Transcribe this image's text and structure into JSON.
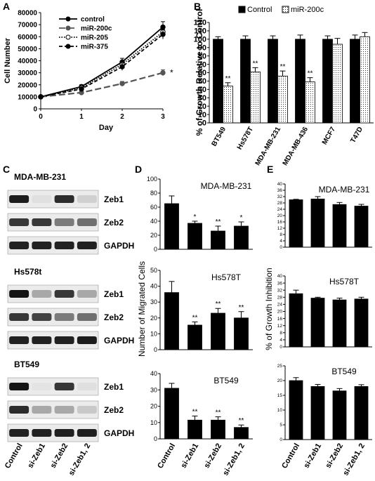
{
  "panels": [
    "A",
    "B",
    "C",
    "D",
    "E"
  ],
  "chart_data": [
    {
      "id": "A",
      "type": "line",
      "xlabel": "Day",
      "ylabel": "Cell Number",
      "x": [
        0,
        1,
        2,
        3
      ],
      "xlim": [
        0,
        3
      ],
      "ylim": [
        0,
        80000
      ],
      "yticks": [
        0,
        10000,
        20000,
        30000,
        40000,
        50000,
        60000,
        70000,
        80000
      ],
      "series": [
        {
          "name": "control",
          "values": [
            10000,
            18500,
            39000,
            68000
          ],
          "err": [
            0,
            1500,
            3000,
            4500
          ],
          "line": "solid",
          "marker": "filled"
        },
        {
          "name": "miR-200c",
          "values": [
            10000,
            13500,
            21000,
            30000
          ],
          "err": [
            0,
            1000,
            1800,
            2500
          ],
          "line": "longdash",
          "marker": "filled",
          "color": "#555555"
        },
        {
          "name": "miR-205",
          "values": [
            10000,
            17500,
            37000,
            64000
          ],
          "err": [
            0,
            1500,
            3000,
            4500
          ],
          "line": "dotted",
          "marker": "open"
        },
        {
          "name": "miR-375",
          "values": [
            10000,
            16500,
            35000,
            62000
          ],
          "err": [
            0,
            1500,
            3000,
            4000
          ],
          "line": "dashed",
          "marker": "filled"
        }
      ],
      "annotations": [
        {
          "text": "*",
          "x": 3,
          "y": 30000
        }
      ]
    },
    {
      "id": "B",
      "type": "bar",
      "ylabel": "% of Growth Relative to Control",
      "ylim": [
        0,
        120
      ],
      "yticks": [
        0,
        10,
        20,
        30,
        40,
        50,
        60,
        70,
        80,
        90,
        100,
        110,
        120
      ],
      "categories": [
        "BT549",
        "Hs578T",
        "MDA-MB-231",
        "MDA-MB-436",
        "MCF7",
        "T47D"
      ],
      "series": [
        {
          "name": "Control",
          "values": [
            100,
            100,
            100,
            100,
            100,
            100
          ],
          "err": [
            3,
            4,
            4,
            5,
            4,
            5
          ],
          "fill": "#000000"
        },
        {
          "name": "miR-200c",
          "values": [
            44,
            61,
            56,
            49,
            94,
            103
          ],
          "err": [
            4,
            5,
            6,
            5,
            7,
            5
          ],
          "fill": "dotted"
        }
      ],
      "annotations": [
        "**",
        "**",
        "**",
        "**",
        "",
        ""
      ],
      "legend": "top"
    },
    {
      "id": "D1",
      "type": "bar",
      "title": "MDA-MB-231",
      "ylim": [
        0,
        100
      ],
      "yticks": [
        0,
        20,
        40,
        60,
        80,
        100
      ],
      "categories": [
        "Control",
        "si-Zeb1",
        "si-Zeb2",
        "si-Zeb1, 2"
      ],
      "values": [
        65,
        37,
        26,
        33
      ],
      "err": [
        11,
        3,
        7,
        6
      ],
      "annotations": [
        "",
        "*",
        "**",
        "*"
      ]
    },
    {
      "id": "D2",
      "type": "bar",
      "title": "Hs578T",
      "ylim": [
        0,
        50
      ],
      "yticks": [
        0,
        10,
        20,
        30,
        40,
        50
      ],
      "categories": [
        "Control",
        "si-Zeb1",
        "si-Zeb2",
        "si-Zeb1, 2"
      ],
      "values": [
        36,
        15.5,
        23,
        20
      ],
      "err": [
        7,
        2,
        3,
        4
      ],
      "annotations": [
        "",
        "**",
        "**",
        "**"
      ]
    },
    {
      "id": "D3",
      "type": "bar",
      "title": "BT549",
      "ylim": [
        0,
        40
      ],
      "yticks": [
        0,
        10,
        20,
        30,
        40
      ],
      "categories": [
        "Control",
        "si-Zeb1",
        "si-Zeb2",
        "si-Zeb1, 2"
      ],
      "values": [
        31,
        11.5,
        11.5,
        7
      ],
      "err": [
        3,
        2.5,
        2,
        1.5
      ],
      "annotations": [
        "",
        "**",
        "**",
        "**"
      ]
    },
    {
      "id": "E1",
      "type": "bar",
      "title": "MDA-MB-231",
      "ylim": [
        0,
        40
      ],
      "yticks": [
        0,
        4,
        8,
        12,
        16,
        20,
        24,
        28,
        32,
        36,
        40
      ],
      "categories": [
        "Control",
        "si-Zeb1",
        "si-Zeb2",
        "si-Zeb1, 2"
      ],
      "values": [
        30,
        30.5,
        27,
        26
      ],
      "err": [
        0.3,
        1.5,
        1.3,
        1.1
      ],
      "annotations": [
        "",
        "",
        "",
        ""
      ]
    },
    {
      "id": "E2",
      "type": "bar",
      "title": "Hs578T",
      "ylim": [
        0,
        40
      ],
      "yticks": [
        0,
        4,
        8,
        12,
        16,
        20,
        24,
        28,
        32,
        36,
        40
      ],
      "categories": [
        "Control",
        "si-Zeb1",
        "si-Zeb2",
        "si-Zeb1, 2"
      ],
      "values": [
        30,
        27.5,
        26.5,
        27
      ],
      "err": [
        2,
        0.5,
        1,
        1
      ],
      "annotations": [
        "",
        "",
        "",
        ""
      ]
    },
    {
      "id": "E3",
      "type": "bar",
      "title": "BT549",
      "ylim": [
        0,
        25
      ],
      "yticks": [
        0,
        5,
        10,
        15,
        20,
        25
      ],
      "categories": [
        "Control",
        "si-Zeb1",
        "si-Zeb2",
        "si-Zeb1, 2"
      ],
      "values": [
        20,
        18,
        16.5,
        18
      ],
      "err": [
        1,
        0.7,
        0.8,
        0.6
      ],
      "annotations": [
        "",
        "",
        "",
        ""
      ]
    }
  ],
  "panel_D_ylabel": "Number of Migrated Cells",
  "panel_E_ylabel": "% of Growth Inhibition",
  "western_blot": {
    "groups": [
      {
        "cell_line": "MDA-MB-231",
        "rows": [
          {
            "label": "Zeb1",
            "intensity": [
              0.92,
              0.05,
              0.85,
              0.12
            ]
          },
          {
            "label": "Zeb2",
            "intensity": [
              0.8,
              0.8,
              0.5,
              0.55
            ]
          },
          {
            "label": "GAPDH",
            "intensity": [
              0.9,
              0.9,
              0.9,
              0.9
            ]
          }
        ]
      },
      {
        "cell_line": "Hs578t",
        "rows": [
          {
            "label": "Zeb1",
            "intensity": [
              0.95,
              0.3,
              0.8,
              0.3
            ]
          },
          {
            "label": "Zeb2",
            "intensity": [
              0.8,
              0.75,
              0.5,
              0.55
            ]
          },
          {
            "label": "GAPDH",
            "intensity": [
              0.9,
              0.9,
              0.9,
              0.92
            ]
          }
        ]
      },
      {
        "cell_line": "BT549",
        "rows": [
          {
            "label": "Zeb1",
            "intensity": [
              0.95,
              0.03,
              0.8,
              0.05
            ]
          },
          {
            "label": "Zeb2",
            "intensity": [
              0.85,
              0.3,
              0.3,
              0.15
            ]
          },
          {
            "label": "GAPDH",
            "intensity": [
              0.9,
              0.9,
              0.9,
              0.9
            ]
          }
        ]
      }
    ],
    "lanes": [
      "Control",
      "si-Zeb1",
      "si-Zeb2",
      "si-Zeb1, 2"
    ]
  }
}
